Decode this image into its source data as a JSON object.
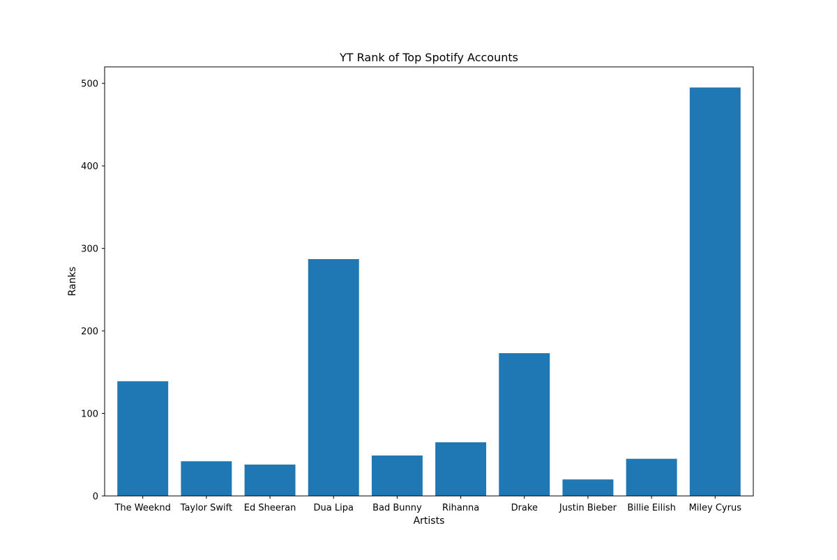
{
  "chart_data": {
    "type": "bar",
    "title": "YT Rank of Top Spotify Accounts",
    "xlabel": "Artists",
    "ylabel": "Ranks",
    "categories": [
      "The Weeknd",
      "Taylor Swift",
      "Ed Sheeran",
      "Dua Lipa",
      "Bad Bunny",
      "Rihanna",
      "Drake",
      "Justin Bieber",
      "Billie Eilish",
      "Miley Cyrus"
    ],
    "values": [
      139,
      42,
      38,
      287,
      49,
      65,
      173,
      20,
      45,
      495
    ],
    "ylim": [
      0,
      520
    ],
    "yticks": [
      0,
      100,
      200,
      300,
      400,
      500
    ],
    "bar_color": "#1f77b4",
    "grid": false,
    "legend": "none"
  }
}
